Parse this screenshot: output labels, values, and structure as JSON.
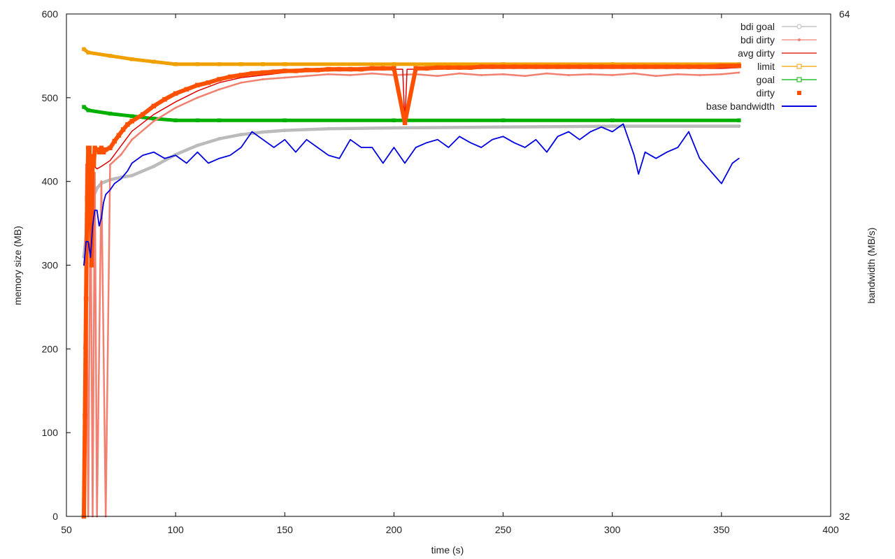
{
  "chart_data": {
    "type": "line",
    "title": "",
    "xlabel": "time (s)",
    "ylabel": "memory size (MB)",
    "y2label": "bandwidth (MB/s)",
    "xlim": [
      50,
      400
    ],
    "ylim": [
      0,
      600
    ],
    "y2lim": [
      32,
      64
    ],
    "x_ticks": [
      50,
      100,
      150,
      200,
      250,
      300,
      350,
      400
    ],
    "y_ticks": [
      0,
      100,
      200,
      300,
      400,
      500,
      600
    ],
    "y2_ticks": [
      32,
      64
    ],
    "grid": false,
    "legend_position": "top-right",
    "legend": [
      "bdi goal",
      "bdi dirty",
      "avg dirty",
      "limit",
      "goal",
      "dirty",
      "base bandwidth"
    ],
    "series": [
      {
        "name": "bdi goal",
        "color": "#bbbbbb",
        "marker": "circle",
        "x": [
          58,
          60,
          62,
          64,
          66,
          70,
          75,
          80,
          90,
          100,
          110,
          120,
          130,
          140,
          150,
          170,
          200,
          250,
          300,
          358
        ],
        "y": [
          310,
          360,
          380,
          392,
          398,
          402,
          405,
          407,
          418,
          432,
          443,
          451,
          456,
          459,
          461,
          463,
          464,
          465,
          466,
          466
        ]
      },
      {
        "name": "bdi dirty",
        "color": "#f28070",
        "marker": "dot",
        "x": [
          58,
          59,
          60,
          61,
          62,
          63,
          64,
          66,
          68,
          70,
          75,
          80,
          90,
          100,
          110,
          120,
          130,
          140,
          150,
          160,
          170,
          180,
          190,
          200,
          210,
          220,
          230,
          240,
          250,
          260,
          270,
          280,
          290,
          300,
          310,
          320,
          330,
          340,
          350,
          358
        ],
        "y": [
          0,
          420,
          0,
          400,
          0,
          410,
          0,
          400,
          0,
          420,
          432,
          450,
          472,
          488,
          500,
          510,
          518,
          522,
          524,
          526,
          528,
          527,
          529,
          527,
          528,
          526,
          529,
          527,
          528,
          526,
          529,
          527,
          528,
          527,
          529,
          526,
          528,
          527,
          528,
          530
        ]
      },
      {
        "name": "avg dirty",
        "color": "#e00000",
        "marker": "none",
        "x": [
          58,
          60,
          62,
          64,
          66,
          70,
          80,
          90,
          100,
          110,
          120,
          130,
          140,
          150,
          160,
          170,
          180,
          190,
          200,
          204,
          205,
          206,
          210,
          220,
          230,
          240,
          250,
          260,
          270,
          280,
          290,
          300,
          310,
          320,
          330,
          340,
          350,
          358
        ],
        "y": [
          200,
          400,
          420,
          415,
          418,
          425,
          460,
          480,
          495,
          508,
          518,
          524,
          527,
          530,
          531,
          532,
          533,
          533,
          534,
          534,
          470,
          534,
          534,
          534,
          535,
          535,
          535,
          535,
          535,
          535,
          535,
          535,
          535,
          535,
          535,
          535,
          535,
          536
        ]
      },
      {
        "name": "limit",
        "color": "#f0a000",
        "marker": "square",
        "x": [
          58,
          60,
          70,
          80,
          90,
          100,
          110,
          120,
          130,
          140,
          150,
          200,
          250,
          300,
          358
        ],
        "y": [
          558,
          554,
          550,
          546,
          543,
          540,
          540,
          540,
          540,
          540,
          540,
          540,
          540,
          540,
          540
        ]
      },
      {
        "name": "goal",
        "color": "#00b000",
        "marker": "square",
        "x": [
          58,
          60,
          70,
          80,
          90,
          100,
          110,
          120,
          150,
          200,
          250,
          300,
          358
        ],
        "y": [
          489,
          485,
          481,
          478,
          475,
          473,
          473,
          473,
          473,
          473,
          473,
          473,
          473
        ]
      },
      {
        "name": "dirty",
        "color": "#ff5000",
        "marker": "square",
        "x": [
          58,
          58.5,
          59,
          59.5,
          60,
          60.5,
          61,
          61.5,
          62,
          62.5,
          63,
          64,
          65,
          66,
          67,
          68,
          70,
          72,
          74,
          76,
          78,
          80,
          85,
          90,
          95,
          100,
          105,
          110,
          115,
          120,
          125,
          130,
          135,
          140,
          145,
          150,
          155,
          160,
          165,
          170,
          175,
          180,
          185,
          190,
          195,
          200,
          205,
          210,
          215,
          220,
          225,
          230,
          235,
          240,
          245,
          250,
          255,
          260,
          265,
          270,
          275,
          280,
          285,
          290,
          295,
          300,
          305,
          310,
          315,
          320,
          325,
          330,
          335,
          340,
          345,
          350,
          355,
          358
        ],
        "y": [
          0,
          120,
          260,
          380,
          440,
          440,
          400,
          300,
          430,
          420,
          440,
          438,
          435,
          440,
          435,
          438,
          440,
          448,
          455,
          462,
          468,
          472,
          480,
          490,
          498,
          505,
          510,
          515,
          518,
          522,
          525,
          527,
          529,
          530,
          531,
          532,
          532,
          533,
          533,
          534,
          534,
          534,
          534,
          535,
          535,
          535,
          470,
          535,
          535,
          536,
          536,
          536,
          536,
          537,
          537,
          537,
          537,
          537,
          537,
          537,
          537,
          537,
          537,
          537,
          537,
          537,
          537,
          537,
          537,
          537,
          537,
          537,
          537,
          537,
          537,
          538,
          538,
          538
        ]
      },
      {
        "name": "base bandwidth",
        "color": "#0000e0",
        "marker": "none",
        "axis": "y2",
        "x": [
          58,
          59,
          60,
          61,
          62,
          63,
          64,
          65,
          66,
          67,
          68,
          70,
          72,
          75,
          78,
          80,
          85,
          90,
          95,
          100,
          105,
          110,
          115,
          120,
          125,
          130,
          135,
          140,
          145,
          150,
          155,
          160,
          165,
          170,
          175,
          180,
          185,
          190,
          195,
          200,
          205,
          210,
          215,
          220,
          225,
          230,
          235,
          240,
          245,
          250,
          255,
          260,
          265,
          270,
          275,
          280,
          285,
          290,
          295,
          300,
          305,
          310,
          312,
          315,
          320,
          325,
          330,
          335,
          340,
          345,
          350,
          355,
          358
        ],
        "y": [
          48,
          49.5,
          49.5,
          48.5,
          50.5,
          51.5,
          51.5,
          50.5,
          51,
          52,
          52.5,
          52.8,
          53.2,
          53.5,
          54,
          54.5,
          55,
          55.2,
          54.8,
          55,
          54.5,
          55.2,
          54.5,
          54.8,
          55,
          55.5,
          56.5,
          56,
          55.5,
          56,
          55.2,
          56,
          55.5,
          55,
          54.8,
          56,
          55.5,
          55.5,
          54.5,
          55.5,
          54.5,
          55.5,
          55.8,
          56,
          55.5,
          56.2,
          55.8,
          55.5,
          56,
          56.2,
          55.8,
          55.5,
          56,
          55.2,
          56.2,
          56.5,
          56,
          56.5,
          56.8,
          56.5,
          57,
          55,
          53.8,
          55.2,
          54.8,
          55.2,
          55.5,
          56.5,
          54.8,
          54,
          53.2,
          54.5,
          54.8
        ]
      }
    ]
  }
}
